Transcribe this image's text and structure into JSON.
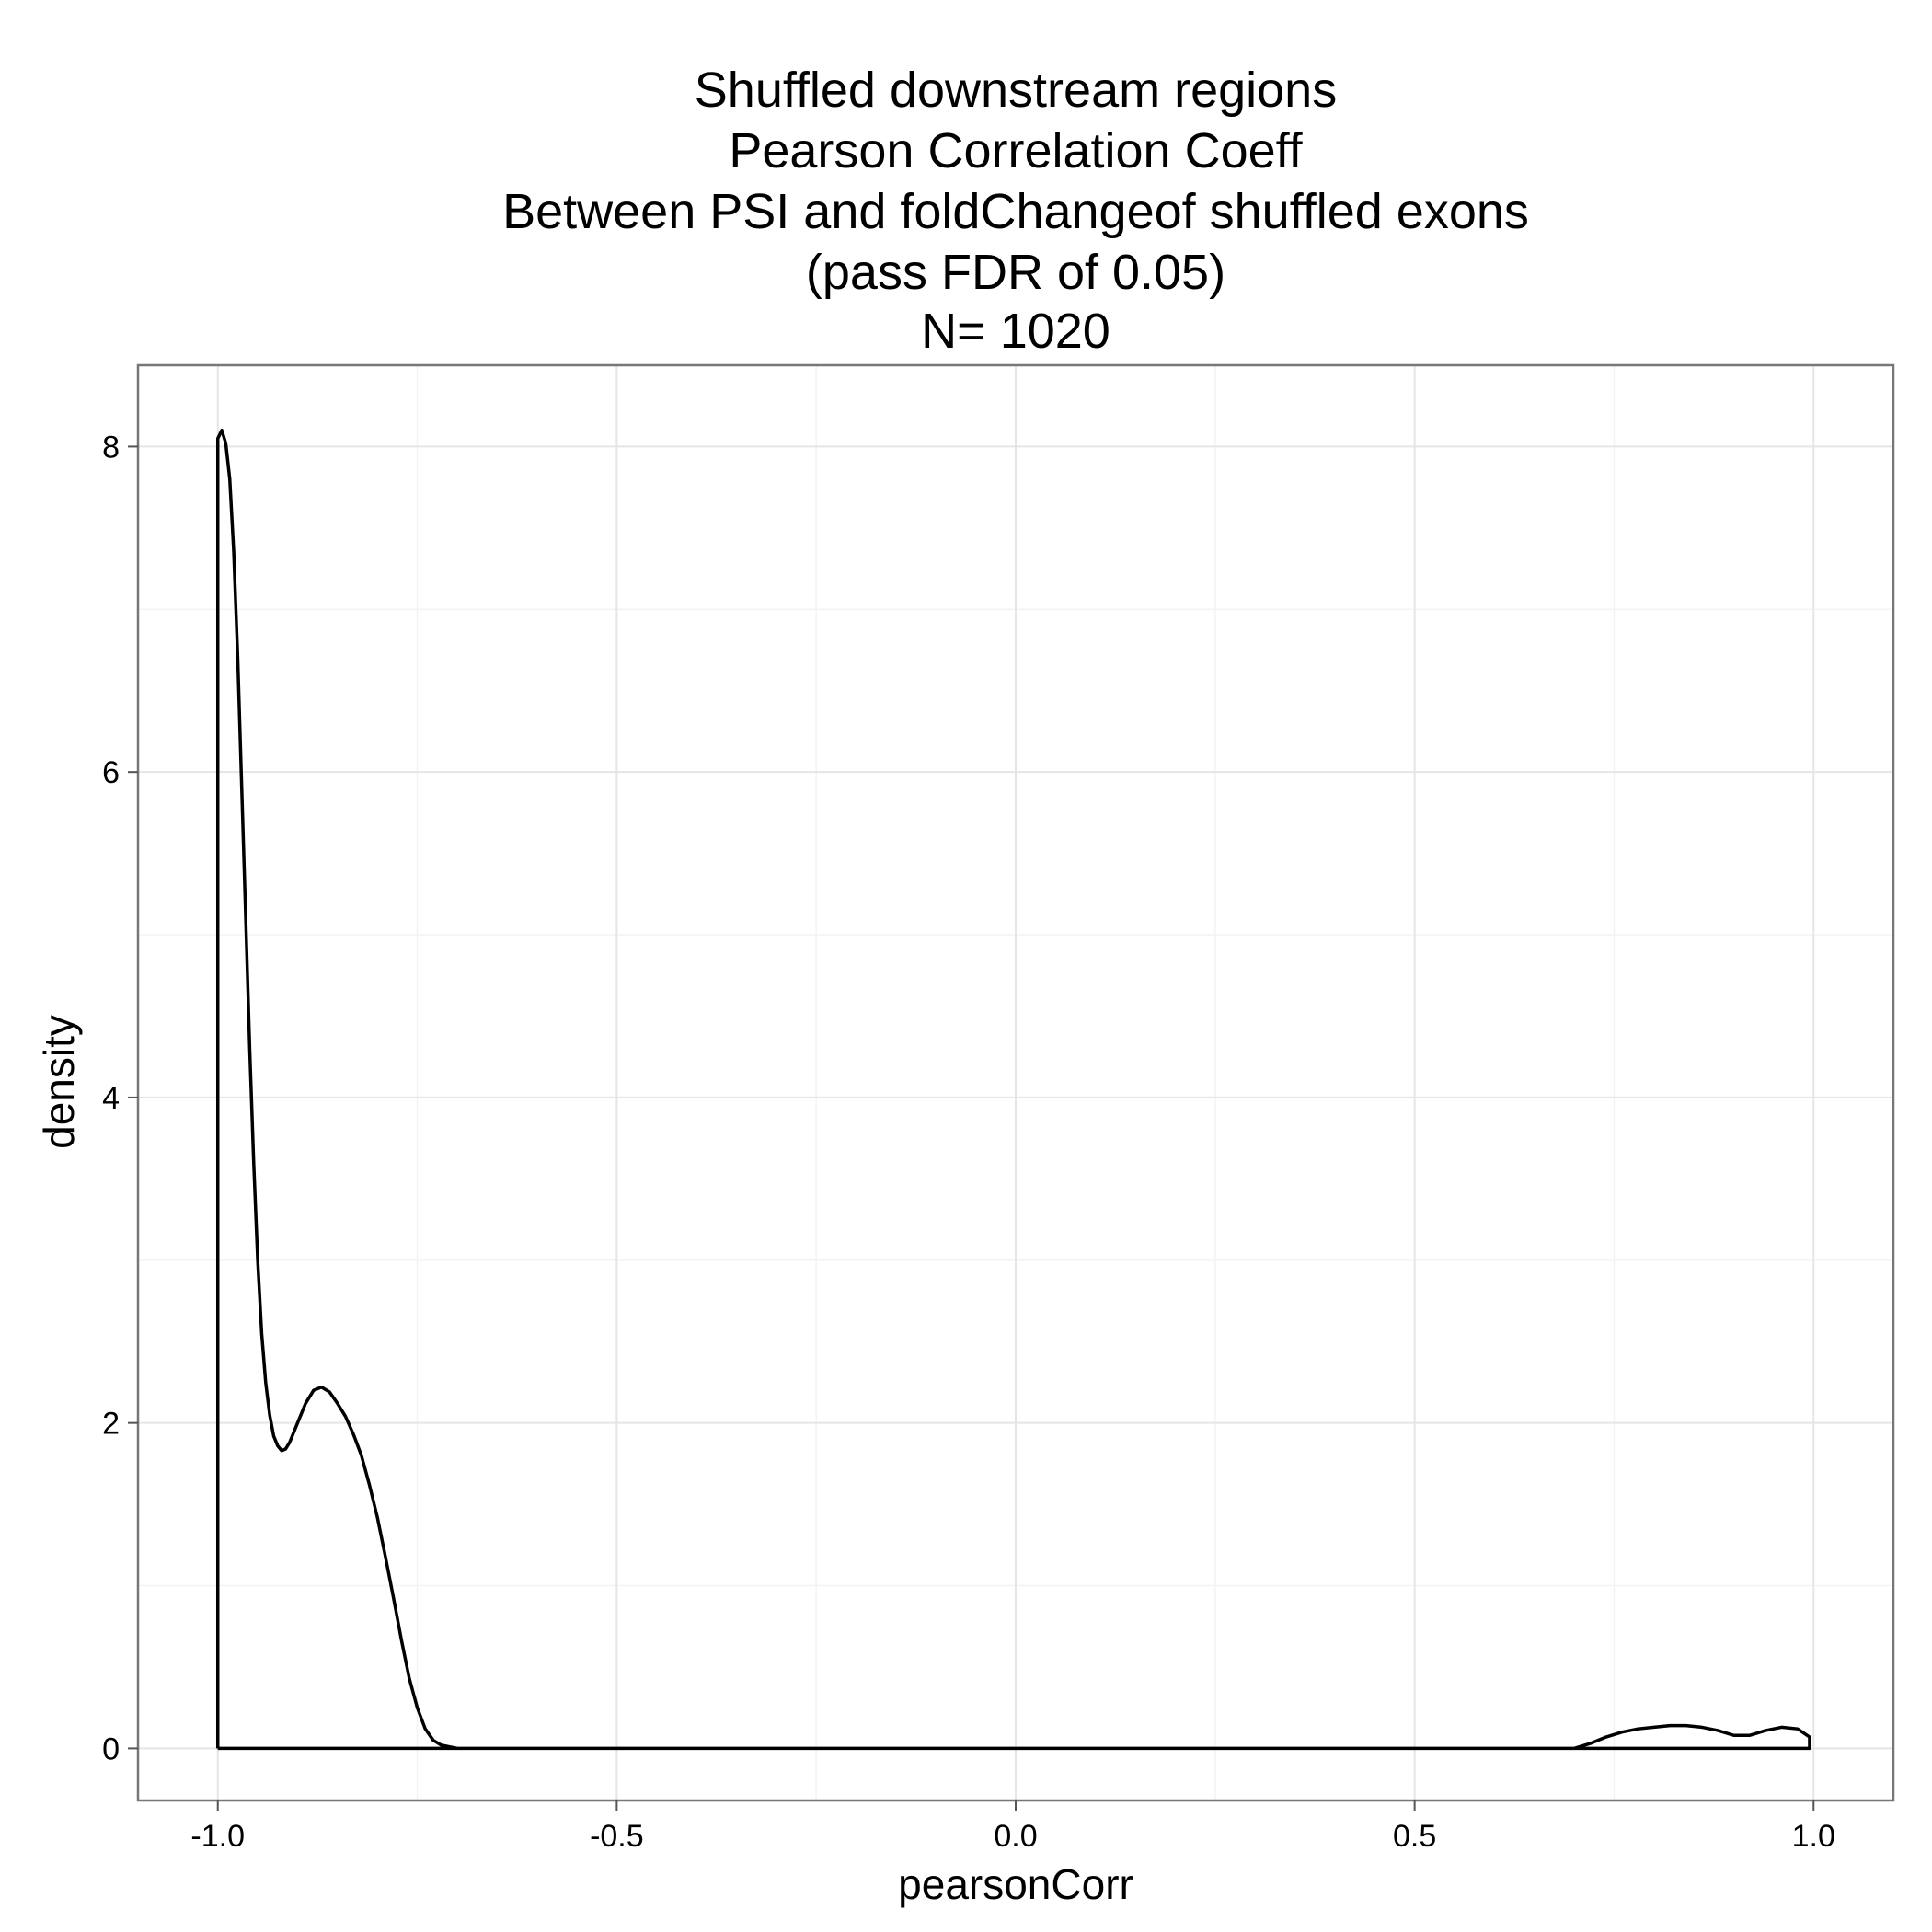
{
  "chart_data": {
    "type": "line",
    "geom": "density",
    "title_lines": [
      "Shuffled downstream regions",
      "Pearson Correlation Coeff",
      "Between PSI and foldChangeof shuffled exons",
      "(pass FDR of 0.05)",
      "N= 1020"
    ],
    "xlabel": "pearsonCorr",
    "ylabel": "density",
    "xlim": [
      -1.1,
      1.1
    ],
    "ylim": [
      -0.32,
      8.5
    ],
    "x_ticks": [
      -1.0,
      -0.5,
      0.0,
      0.5,
      1.0
    ],
    "x_tick_labels": [
      "-1.0",
      "-0.5",
      "0.0",
      "0.5",
      "1.0"
    ],
    "y_ticks": [
      0,
      2,
      4,
      6,
      8
    ],
    "y_tick_labels": [
      "0",
      "2",
      "4",
      "6",
      "8"
    ],
    "x_minor": [
      -0.75,
      -0.25,
      0.25,
      0.75
    ],
    "y_minor": [
      1,
      3,
      5,
      7
    ],
    "grid": true,
    "background": "#ffffff",
    "line_color": "#000000",
    "series": [
      {
        "x": [
          -1.0,
          -1.0,
          -0.995,
          -0.99,
          -0.985,
          -0.98,
          -0.975,
          -0.97,
          -0.965,
          -0.96,
          -0.955,
          -0.95,
          -0.945,
          -0.94,
          -0.935,
          -0.93,
          -0.925,
          -0.92,
          -0.915,
          -0.91,
          -0.9,
          -0.89,
          -0.88,
          -0.87,
          -0.86,
          -0.85,
          -0.84,
          -0.83,
          -0.82,
          -0.81,
          -0.8,
          -0.79,
          -0.78,
          -0.77,
          -0.76,
          -0.75,
          -0.74,
          -0.73,
          -0.72,
          -0.71,
          -0.7,
          -0.69,
          -0.68,
          -0.67,
          -0.66,
          -0.65,
          -0.6,
          -0.5,
          -0.3,
          0.0,
          0.3,
          0.5,
          0.6,
          0.65,
          0.68,
          0.7,
          0.72,
          0.74,
          0.76,
          0.78,
          0.8,
          0.82,
          0.84,
          0.86,
          0.88,
          0.9,
          0.92,
          0.94,
          0.96,
          0.98,
          0.995,
          0.995,
          -1.0
        ],
        "y": [
          0.0,
          8.05,
          8.1,
          8.02,
          7.8,
          7.35,
          6.7,
          5.9,
          5.1,
          4.3,
          3.6,
          3.0,
          2.55,
          2.25,
          2.05,
          1.92,
          1.86,
          1.83,
          1.84,
          1.88,
          2.0,
          2.12,
          2.2,
          2.22,
          2.19,
          2.12,
          2.04,
          1.93,
          1.8,
          1.62,
          1.42,
          1.18,
          0.93,
          0.67,
          0.43,
          0.25,
          0.12,
          0.05,
          0.02,
          0.01,
          0.0,
          0.0,
          0.0,
          0.0,
          0.0,
          0.0,
          0.0,
          0.0,
          0.0,
          0.0,
          0.0,
          0.0,
          0.0,
          0.0,
          0.0,
          0.0,
          0.03,
          0.07,
          0.1,
          0.12,
          0.13,
          0.14,
          0.14,
          0.13,
          0.11,
          0.08,
          0.08,
          0.11,
          0.13,
          0.12,
          0.07,
          0.0,
          0.0
        ]
      }
    ]
  }
}
